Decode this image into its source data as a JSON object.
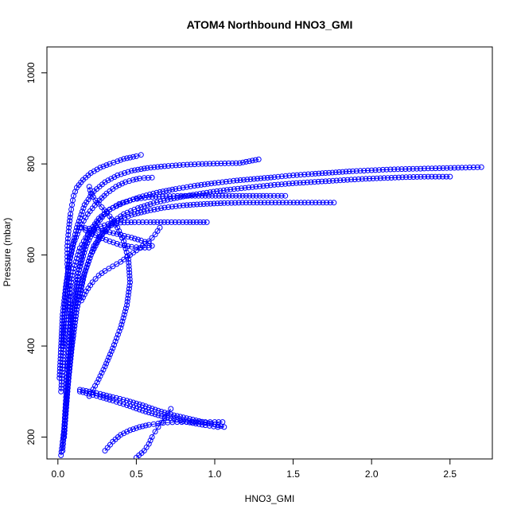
{
  "chart_data": {
    "type": "scatter",
    "title": "ATOM4 Northbound HNO3_GMI",
    "xlabel": "HNO3_GMI",
    "ylabel": "Pressure (mbar)",
    "xlim": [
      -0.07,
      2.77
    ],
    "ylim": [
      1057,
      152
    ],
    "y_reversed": true,
    "x_ticks": [
      "0.0",
      "0.5",
      "1.0",
      "1.5",
      "2.0",
      "2.5"
    ],
    "x_tick_values": [
      0,
      0.5,
      1.0,
      1.5,
      2.0,
      2.5
    ],
    "y_ticks": [
      "200",
      "400",
      "600",
      "800",
      "1000"
    ],
    "y_tick_values": [
      200,
      400,
      600,
      800,
      1000
    ],
    "marker": "open-circle",
    "color": "#0000ff",
    "grid": false,
    "legend": "none",
    "series": [
      {
        "x": [
          0.02,
          0.04,
          0.05,
          0.06,
          0.07,
          0.08,
          0.08,
          0.07,
          0.06,
          0.06,
          0.07,
          0.08,
          0.09,
          0.1,
          0.12,
          0.16,
          0.21,
          0.27,
          0.33,
          0.38,
          0.42,
          0.46,
          0.5,
          0.53
        ],
        "y": [
          160,
          220,
          280,
          340,
          400,
          450,
          500,
          540,
          580,
          620,
          660,
          690,
          710,
          730,
          748,
          765,
          780,
          792,
          800,
          806,
          811,
          814,
          817,
          820
        ]
      },
      {
        "x": [
          0.03,
          0.05,
          0.07,
          0.09,
          0.11,
          0.13,
          0.16,
          0.2,
          0.26,
          0.33,
          0.42,
          0.52,
          0.63,
          0.75,
          0.87,
          1.0,
          1.12,
          1.25,
          1.38,
          1.5,
          1.62,
          1.75,
          1.88,
          2.0,
          2.12,
          2.24,
          2.36,
          2.48,
          2.6,
          2.7
        ],
        "y": [
          170,
          260,
          350,
          430,
          500,
          560,
          610,
          650,
          680,
          700,
          715,
          727,
          737,
          745,
          752,
          758,
          763,
          767,
          771,
          775,
          778,
          781,
          784,
          786,
          788,
          789,
          790,
          791,
          792,
          793
        ]
      },
      {
        "x": [
          0.04,
          0.06,
          0.09,
          0.12,
          0.16,
          0.21,
          0.27,
          0.34,
          0.42,
          0.51,
          0.61,
          0.72,
          0.84,
          0.97,
          1.1,
          1.24,
          1.38,
          1.52,
          1.66,
          1.8,
          1.94,
          2.08,
          2.22,
          2.36,
          2.5
        ],
        "y": [
          200,
          300,
          400,
          480,
          550,
          600,
          640,
          670,
          690,
          703,
          714,
          723,
          731,
          738,
          744,
          749,
          754,
          758,
          761,
          764,
          767,
          769,
          771,
          772,
          772
        ]
      },
      {
        "x": [
          0.05,
          0.08,
          0.12,
          0.17,
          0.23,
          0.3,
          0.38,
          0.47,
          0.57,
          0.68,
          0.8,
          0.93,
          1.06,
          1.2,
          1.34,
          1.48,
          1.62,
          1.76
        ],
        "y": [
          250,
          380,
          480,
          560,
          620,
          655,
          675,
          688,
          697,
          704,
          709,
          712,
          714,
          715,
          715,
          715,
          715,
          715
        ]
      },
      {
        "x": [
          0.02,
          0.04,
          0.07,
          0.1,
          0.14,
          0.19,
          0.25,
          0.32,
          0.4,
          0.49,
          0.59,
          0.7,
          0.82,
          0.95
        ],
        "y": [
          300,
          420,
          510,
          570,
          615,
          645,
          660,
          668,
          671,
          672,
          672,
          672,
          672,
          672
        ]
      },
      {
        "x": [
          0.06,
          0.09,
          0.13,
          0.18,
          0.24,
          0.31,
          0.39,
          0.48,
          0.58,
          0.69,
          0.81,
          0.94,
          1.07,
          1.2,
          1.33,
          1.45
        ],
        "y": [
          350,
          470,
          560,
          620,
          665,
          695,
          712,
          722,
          727,
          729,
          730,
          730,
          730,
          730,
          730,
          730
        ]
      },
      {
        "x": [
          0.03,
          0.05,
          0.08,
          0.12,
          0.17,
          0.23,
          0.3,
          0.38,
          0.47,
          0.57,
          0.68,
          0.8,
          0.92,
          1.04,
          1.16,
          1.28
        ],
        "y": [
          400,
          520,
          600,
          660,
          710,
          740,
          760,
          775,
          785,
          791,
          795,
          798,
          800,
          801,
          802,
          810
        ]
      },
      {
        "x": [
          0.01,
          0.02,
          0.03,
          0.05,
          0.07,
          0.1,
          0.14,
          0.19,
          0.25,
          0.31,
          0.37,
          0.43,
          0.48,
          0.52,
          0.55,
          0.6
        ],
        "y": [
          330,
          400,
          470,
          530,
          580,
          625,
          660,
          690,
          715,
          735,
          750,
          760,
          765,
          768,
          769,
          770
        ]
      },
      {
        "x": [
          0.15,
          0.2,
          0.26,
          0.33,
          0.4,
          0.47,
          0.53,
          0.58,
          0.6,
          0.58,
          0.53,
          0.47,
          0.4,
          0.33,
          0.26,
          0.2,
          0.15
        ],
        "y": [
          660,
          650,
          640,
          630,
          622,
          618,
          616,
          616,
          620,
          626,
          632,
          638,
          644,
          650,
          655,
          658,
          660
        ]
      },
      {
        "x": [
          0.2,
          0.25,
          0.3,
          0.35,
          0.4,
          0.44,
          0.46,
          0.45,
          0.42,
          0.38,
          0.33,
          0.28,
          0.24,
          0.21,
          0.2
        ],
        "y": [
          290,
          320,
          355,
          395,
          440,
          490,
          540,
          590,
          630,
          660,
          685,
          705,
          720,
          735,
          750
        ]
      },
      {
        "x": [
          0.14,
          0.2,
          0.27,
          0.35,
          0.44,
          0.54,
          0.64,
          0.74,
          0.84,
          0.94,
          1.02,
          1.06,
          1.02,
          0.94,
          0.84,
          0.74,
          0.64,
          0.54,
          0.44,
          0.35,
          0.27,
          0.2,
          0.14
        ],
        "y": [
          300,
          295,
          288,
          280,
          270,
          258,
          248,
          240,
          232,
          226,
          222,
          222,
          226,
          232,
          240,
          248,
          258,
          270,
          280,
          288,
          295,
          300,
          304
        ]
      },
      {
        "x": [
          0.3,
          0.35,
          0.4,
          0.46,
          0.52,
          0.58,
          0.64,
          0.7,
          0.76,
          0.82,
          0.88,
          0.94,
          1.0,
          1.05
        ],
        "y": [
          170,
          190,
          205,
          215,
          222,
          227,
          230,
          232,
          233,
          233,
          233,
          233,
          233,
          233
        ]
      },
      {
        "x": [
          0.5,
          0.55,
          0.58,
          0.6,
          0.62,
          0.64,
          0.66,
          0.68,
          0.7,
          0.72
        ],
        "y": [
          155,
          170,
          185,
          200,
          212,
          222,
          232,
          242,
          252,
          262
        ]
      },
      {
        "x": [
          0.15,
          0.18,
          0.22,
          0.26,
          0.3,
          0.35,
          0.4,
          0.46,
          0.52,
          0.58,
          0.62,
          0.65
        ],
        "y": [
          500,
          520,
          540,
          555,
          565,
          575,
          585,
          600,
          615,
          630,
          645,
          660
        ]
      }
    ]
  }
}
